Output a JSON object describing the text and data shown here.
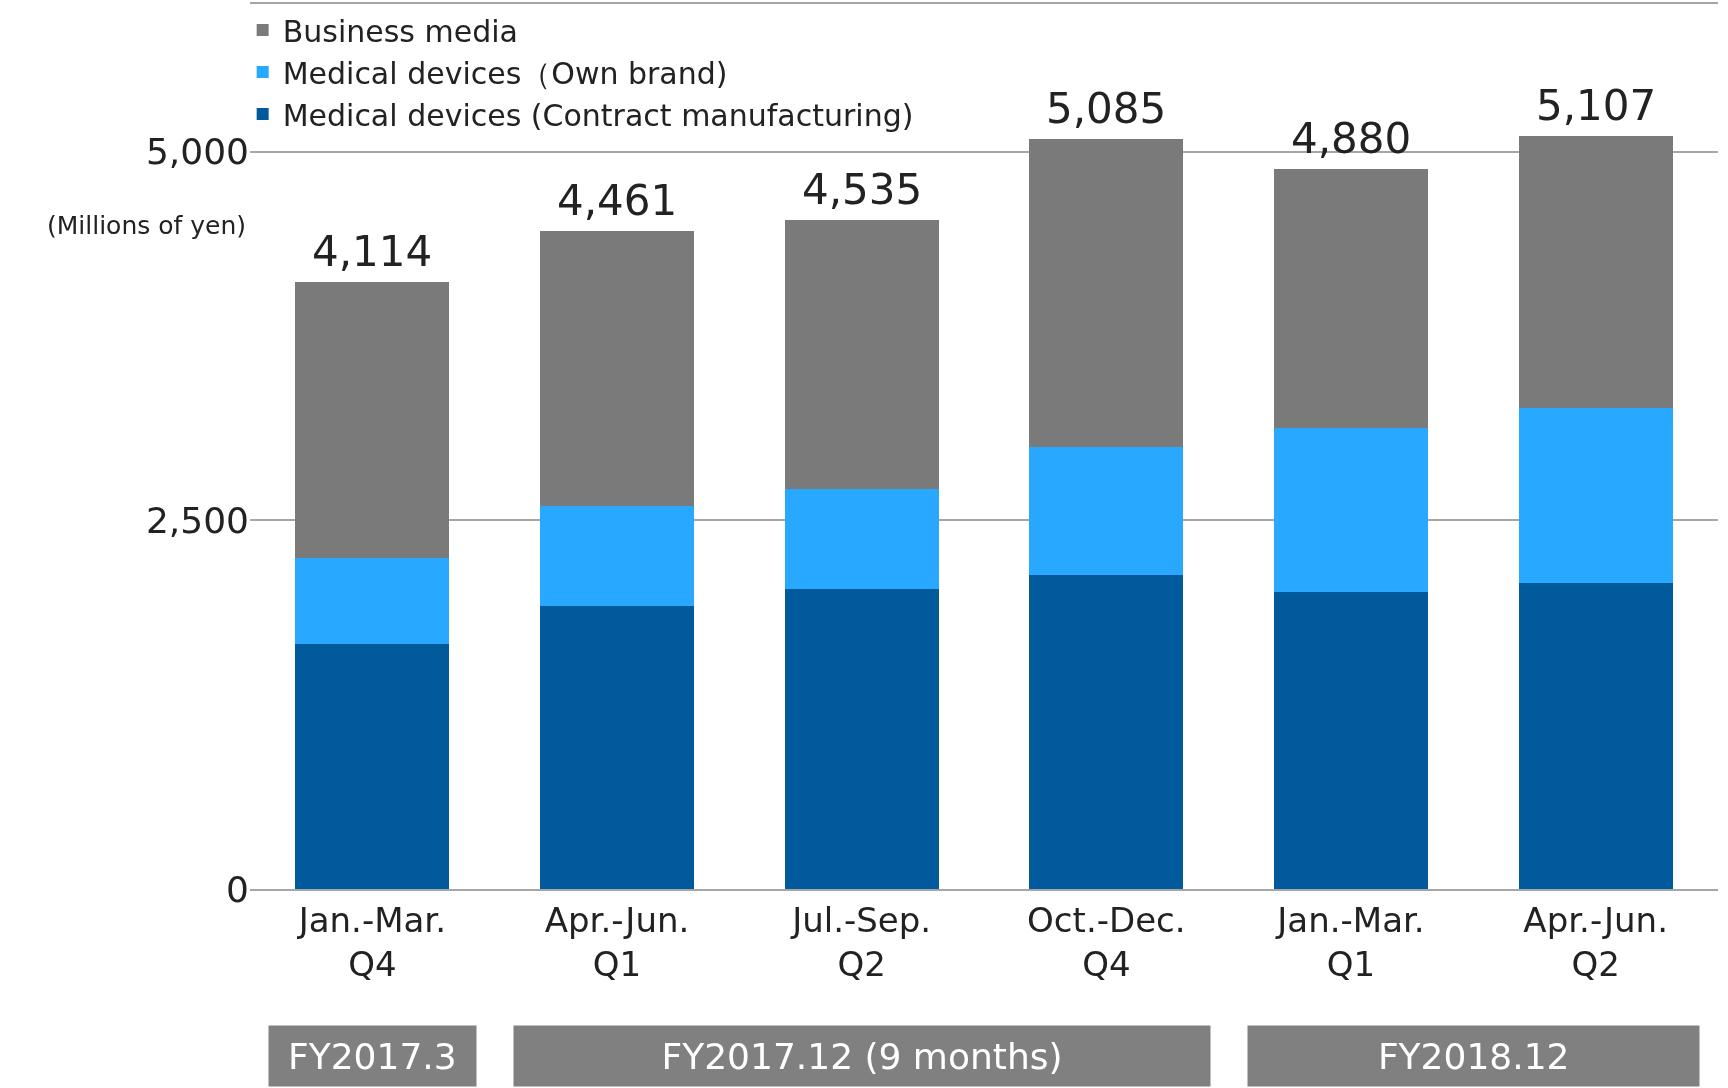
{
  "chart_data": {
    "type": "bar",
    "stacked": true,
    "ylabel": "(Millions of yen)",
    "categories": [
      "Jan.-Mar.\nQ4",
      "Apr.-Jun.\nQ1",
      "Jul.-Sep.\nQ2",
      "Oct.-Dec.\nQ4",
      "Jan.-Mar.\nQ1",
      "Apr.-Jun.\nQ2"
    ],
    "series": [
      {
        "name": "Medical devices (Contract manufacturing)",
        "color": "#005a9c",
        "values": [
          1664,
          1918,
          2037,
          2127,
          2015,
          2075
        ]
      },
      {
        "name": "Medical devices（Own brand)",
        "color": "#29a8ff",
        "values": [
          582,
          679,
          672,
          873,
          1112,
          1186
        ]
      },
      {
        "name": "Business media",
        "color": "#7a7a7a",
        "values": [
          1868,
          1864,
          1826,
          2085,
          1753,
          1846
        ]
      }
    ],
    "totals": [
      "4,114",
      "4,461",
      "4,535",
      "5,085",
      "4,880",
      "5,107"
    ],
    "ylim": [
      0,
      6000
    ],
    "yticks": [
      0,
      {
        "value": 2500,
        "label": "2,500"
      },
      {
        "value": 5000,
        "label": "5,000"
      }
    ],
    "grid": "y",
    "legend": "top left",
    "annotations": [
      "FY2017.3",
      "FY2017.12 (9 months)",
      "FY2018.12"
    ]
  }
}
